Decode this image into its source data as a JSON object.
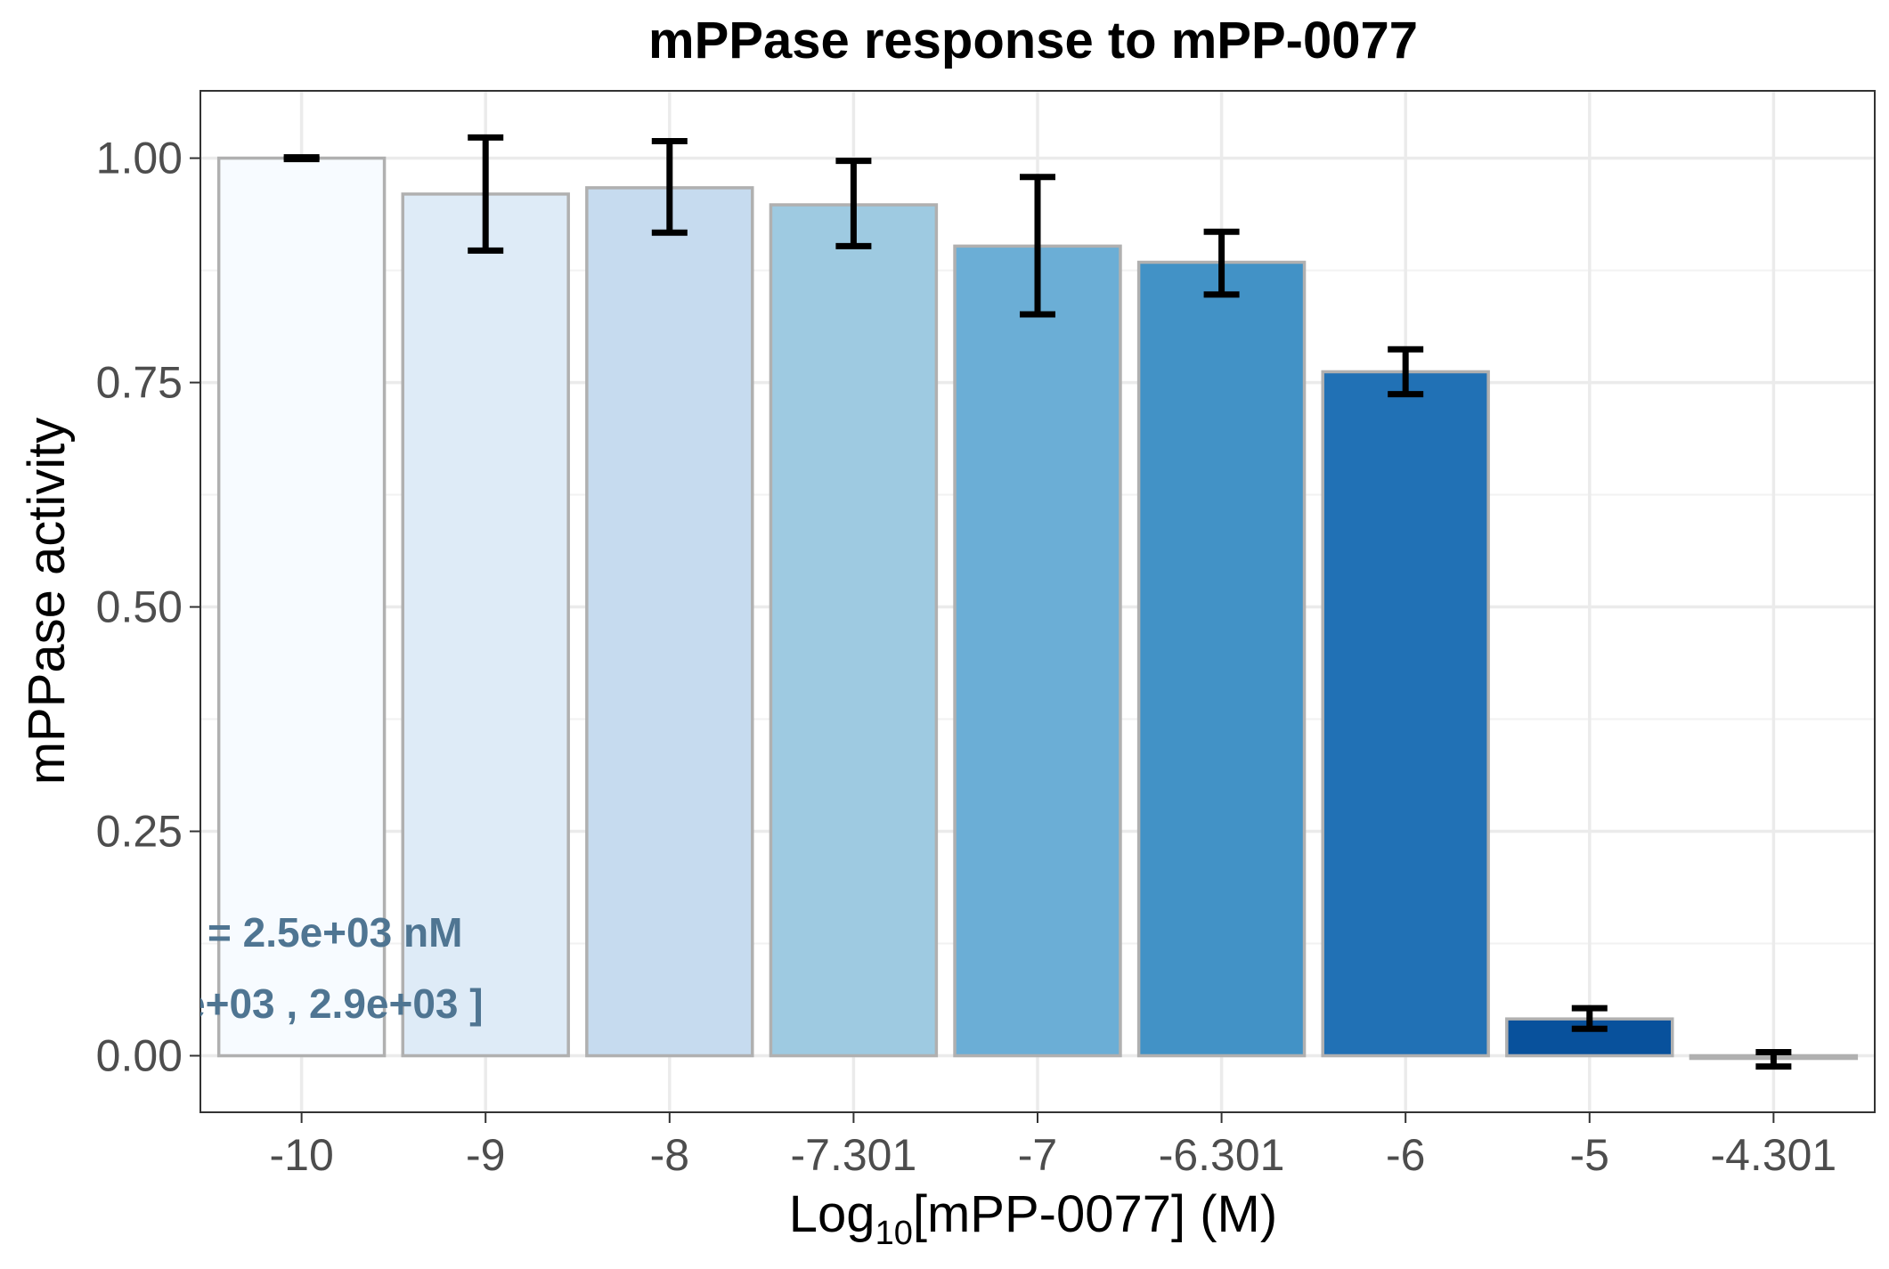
{
  "chart_data": {
    "type": "bar",
    "title": "mPPase response to mPP-0077",
    "xlabel": {
      "prefix": "Log",
      "subscript": "10",
      "suffix": "[mPP-0077] (M)"
    },
    "ylabel": "mPPase activity",
    "categories": [
      "-10",
      "-9",
      "-8",
      "-7.301",
      "-7",
      "-6.301",
      "-6",
      "-5",
      "-4.301"
    ],
    "values": [
      1.0,
      0.96,
      0.967,
      0.948,
      0.902,
      0.884,
      0.762,
      0.041,
      -0.003
    ],
    "error_low": [
      0.999,
      0.897,
      0.917,
      0.902,
      0.826,
      0.848,
      0.737,
      0.03,
      -0.012
    ],
    "error_high": [
      1.001,
      1.023,
      1.019,
      0.997,
      0.979,
      0.918,
      0.787,
      0.053,
      0.004
    ],
    "bar_colors": [
      "#f7fbff",
      "#deebf7",
      "#c6dbef",
      "#9ecae1",
      "#6baed6",
      "#4292c6",
      "#2171b5",
      "#08519c",
      "#08306b"
    ],
    "bar_outline_color": "#b0b0b0",
    "ylim": [
      -0.063,
      1.075
    ],
    "yticks": [
      0.0,
      0.25,
      0.5,
      0.75,
      1.0
    ],
    "ytick_labels": [
      "0.00",
      "0.25",
      "0.50",
      "0.75",
      "1.00"
    ],
    "grid": true,
    "annotations": [
      "= 2.5e+03 nM",
      "e+03 , 2.9e+03 ]"
    ],
    "annotation_color": "#4f7592"
  }
}
